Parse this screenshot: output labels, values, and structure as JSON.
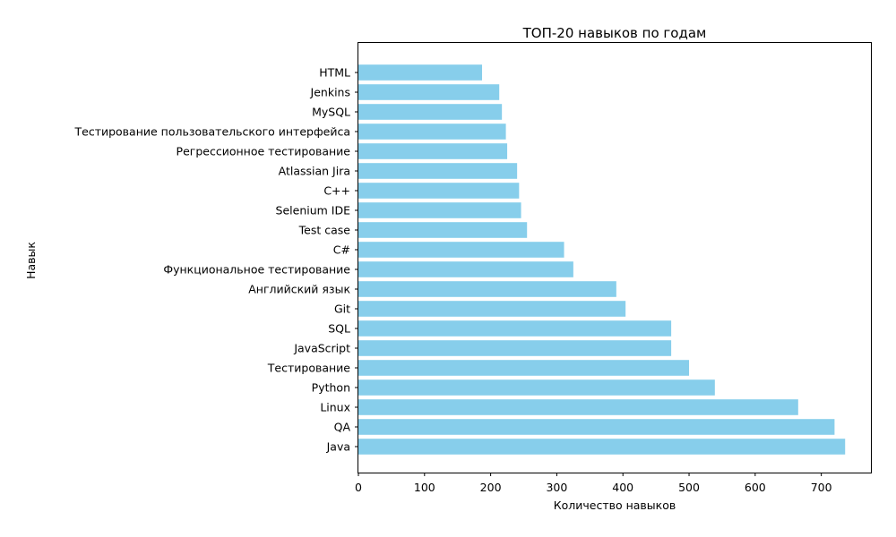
{
  "chart_data": {
    "type": "bar",
    "orientation": "horizontal",
    "title": "ТОП-20 навыков по годам",
    "xlabel": "Количество навыков",
    "ylabel": "Навык",
    "xlim": [
      0,
      775
    ],
    "x_ticks": [
      0,
      100,
      200,
      300,
      400,
      500,
      600,
      700
    ],
    "grid": false,
    "bar_color": "#87ceeb",
    "categories": [
      "Java",
      "QA",
      "Linux",
      "Python",
      "Тестирование",
      "JavaScript",
      "SQL",
      "Git",
      "Английский язык",
      "Функциональное тестирование",
      "C#",
      "Test case",
      "Selenium IDE",
      "C++",
      "Atlassian Jira",
      "Регрессионное тестирование",
      "Тестирование пользовательского интерфейса",
      "MySQL",
      "Jenkins",
      "HTML"
    ],
    "values": [
      736,
      720,
      665,
      539,
      500,
      473,
      473,
      404,
      390,
      325,
      311,
      255,
      246,
      243,
      240,
      225,
      223,
      217,
      213,
      187
    ]
  }
}
